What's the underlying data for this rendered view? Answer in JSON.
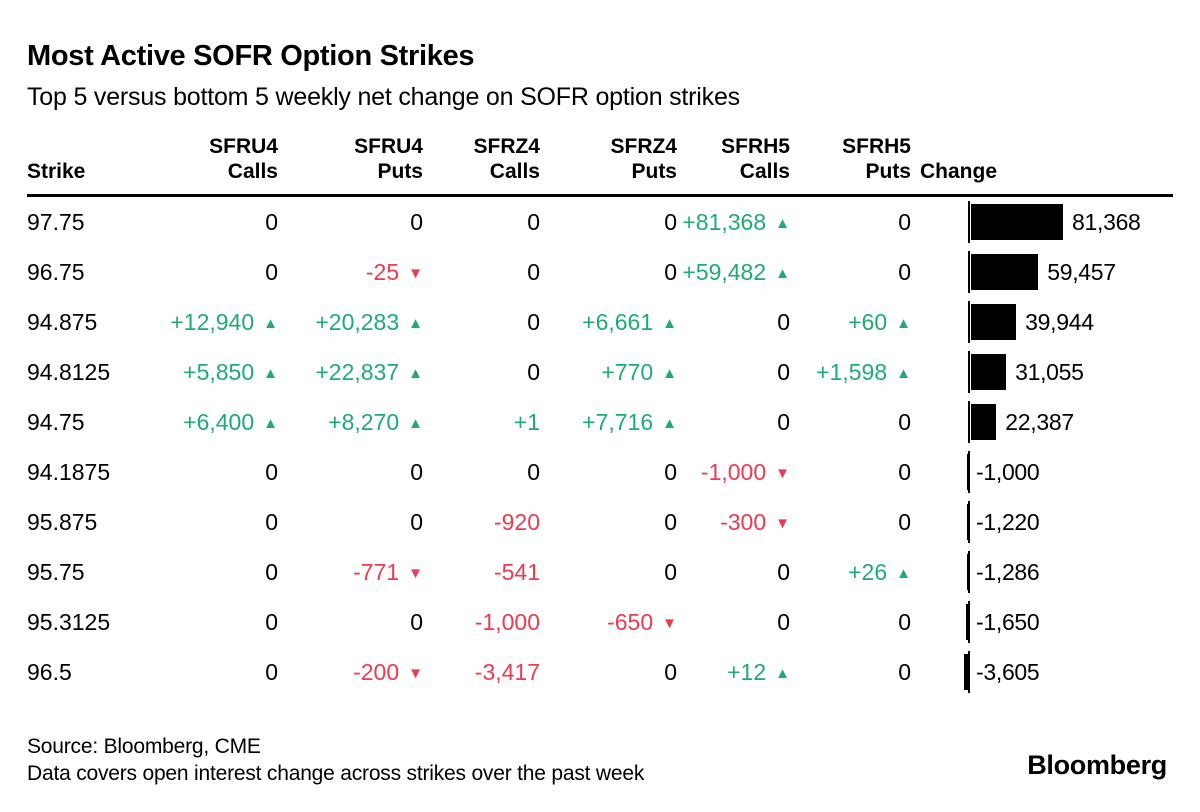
{
  "header": {
    "title": "Most Active SOFR Option Strikes",
    "subtitle": "Top 5 versus bottom 5 weekly net change on SOFR option strikes"
  },
  "table": {
    "columns": [
      {
        "line1": "",
        "line2": "Strike"
      },
      {
        "line1": "SFRU4",
        "line2": "Calls"
      },
      {
        "line1": "SFRU4",
        "line2": "Puts"
      },
      {
        "line1": "SFRZ4",
        "line2": "Calls"
      },
      {
        "line1": "SFRZ4",
        "line2": "Puts"
      },
      {
        "line1": "SFRH5",
        "line2": "Calls"
      },
      {
        "line1": "SFRH5",
        "line2": "Puts"
      },
      {
        "line1": "",
        "line2": "Change"
      }
    ],
    "rows": [
      {
        "strike": "97.75",
        "cells": [
          {
            "t": "0"
          },
          {
            "t": "0"
          },
          {
            "t": "0"
          },
          {
            "t": "0"
          },
          {
            "t": "+81,368",
            "a": "up"
          },
          {
            "t": "0"
          }
        ],
        "change": {
          "label": "81,368",
          "value": 81368
        }
      },
      {
        "strike": "96.75",
        "cells": [
          {
            "t": "0"
          },
          {
            "t": "-25",
            "a": "down"
          },
          {
            "t": "0"
          },
          {
            "t": "0"
          },
          {
            "t": "+59,482",
            "a": "up"
          },
          {
            "t": "0"
          }
        ],
        "change": {
          "label": "59,457",
          "value": 59457
        }
      },
      {
        "strike": "94.875",
        "cells": [
          {
            "t": "+12,940",
            "a": "up"
          },
          {
            "t": "+20,283",
            "a": "up"
          },
          {
            "t": "0"
          },
          {
            "t": "+6,661",
            "a": "up"
          },
          {
            "t": "0"
          },
          {
            "t": "+60",
            "a": "up"
          }
        ],
        "change": {
          "label": "39,944",
          "value": 39944
        }
      },
      {
        "strike": "94.8125",
        "cells": [
          {
            "t": "+5,850",
            "a": "up"
          },
          {
            "t": "+22,837",
            "a": "up"
          },
          {
            "t": "0"
          },
          {
            "t": "+770",
            "a": "up"
          },
          {
            "t": "0"
          },
          {
            "t": "+1,598",
            "a": "up"
          }
        ],
        "change": {
          "label": "31,055",
          "value": 31055
        }
      },
      {
        "strike": "94.75",
        "cells": [
          {
            "t": "+6,400",
            "a": "up"
          },
          {
            "t": "+8,270",
            "a": "up"
          },
          {
            "t": "+1"
          },
          {
            "t": "+7,716",
            "a": "up"
          },
          {
            "t": "0"
          },
          {
            "t": "0"
          }
        ],
        "change": {
          "label": "22,387",
          "value": 22387
        }
      },
      {
        "strike": "94.1875",
        "cells": [
          {
            "t": "0"
          },
          {
            "t": "0"
          },
          {
            "t": "0"
          },
          {
            "t": "0"
          },
          {
            "t": "-1,000",
            "a": "down"
          },
          {
            "t": "0"
          }
        ],
        "change": {
          "label": "-1,000",
          "value": -1000
        }
      },
      {
        "strike": "95.875",
        "cells": [
          {
            "t": "0"
          },
          {
            "t": "0"
          },
          {
            "t": "-920"
          },
          {
            "t": "0"
          },
          {
            "t": "-300",
            "a": "down"
          },
          {
            "t": "0"
          }
        ],
        "change": {
          "label": "-1,220",
          "value": -1220
        }
      },
      {
        "strike": "95.75",
        "cells": [
          {
            "t": "0"
          },
          {
            "t": "-771",
            "a": "down"
          },
          {
            "t": "-541"
          },
          {
            "t": "0"
          },
          {
            "t": "0"
          },
          {
            "t": "+26",
            "a": "up"
          }
        ],
        "change": {
          "label": "-1,286",
          "value": -1286
        }
      },
      {
        "strike": "95.3125",
        "cells": [
          {
            "t": "0"
          },
          {
            "t": "0"
          },
          {
            "t": "-1,000"
          },
          {
            "t": "-650",
            "a": "down"
          },
          {
            "t": "0"
          },
          {
            "t": "0"
          }
        ],
        "change": {
          "label": "-1,650",
          "value": -1650
        }
      },
      {
        "strike": "96.5",
        "cells": [
          {
            "t": "0"
          },
          {
            "t": "-200",
            "a": "down"
          },
          {
            "t": "-3,417"
          },
          {
            "t": "0"
          },
          {
            "t": "+12",
            "a": "up"
          },
          {
            "t": "0"
          }
        ],
        "change": {
          "label": "-3,605",
          "value": -3605
        }
      }
    ]
  },
  "footer": {
    "source": "Source: Bloomberg, CME",
    "note": "Data covers open interest change across strikes over the past week",
    "logo": "Bloomberg"
  },
  "colors": {
    "positive": "#1fab75",
    "negative": "#ee3a4f",
    "bar": "#000000",
    "text": "#000000"
  },
  "chart_data": {
    "type": "table",
    "title": "Most Active SOFR Option Strikes",
    "subtitle": "Top 5 versus bottom 5 weekly net change on SOFR option strikes",
    "columns": [
      "Strike",
      "SFRU4 Calls",
      "SFRU4 Puts",
      "SFRZ4 Calls",
      "SFRZ4 Puts",
      "SFRH5 Calls",
      "SFRH5 Puts",
      "Change"
    ],
    "rows": [
      [
        "97.75",
        0,
        0,
        0,
        0,
        81368,
        0,
        81368
      ],
      [
        "96.75",
        0,
        -25,
        0,
        0,
        59482,
        0,
        59457
      ],
      [
        "94.875",
        12940,
        20283,
        0,
        6661,
        0,
        60,
        39944
      ],
      [
        "94.8125",
        5850,
        22837,
        0,
        770,
        0,
        1598,
        31055
      ],
      [
        "94.75",
        6400,
        8270,
        1,
        7716,
        0,
        0,
        22387
      ],
      [
        "94.1875",
        0,
        0,
        0,
        0,
        -1000,
        0,
        -1000
      ],
      [
        "95.875",
        0,
        0,
        -920,
        0,
        -300,
        0,
        -1220
      ],
      [
        "95.75",
        0,
        -771,
        -541,
        0,
        0,
        26,
        -1286
      ],
      [
        "95.3125",
        0,
        0,
        -1000,
        -650,
        0,
        0,
        -1650
      ],
      [
        "96.5",
        0,
        -200,
        -3417,
        0,
        12,
        0,
        -3605
      ]
    ],
    "bar_column": "Change",
    "bar_baseline": 0,
    "bar_range": [
      -3605,
      81368
    ],
    "legend": "none",
    "source": "Source: Bloomberg, CME",
    "note": "Data covers open interest change across strikes over the past week"
  }
}
